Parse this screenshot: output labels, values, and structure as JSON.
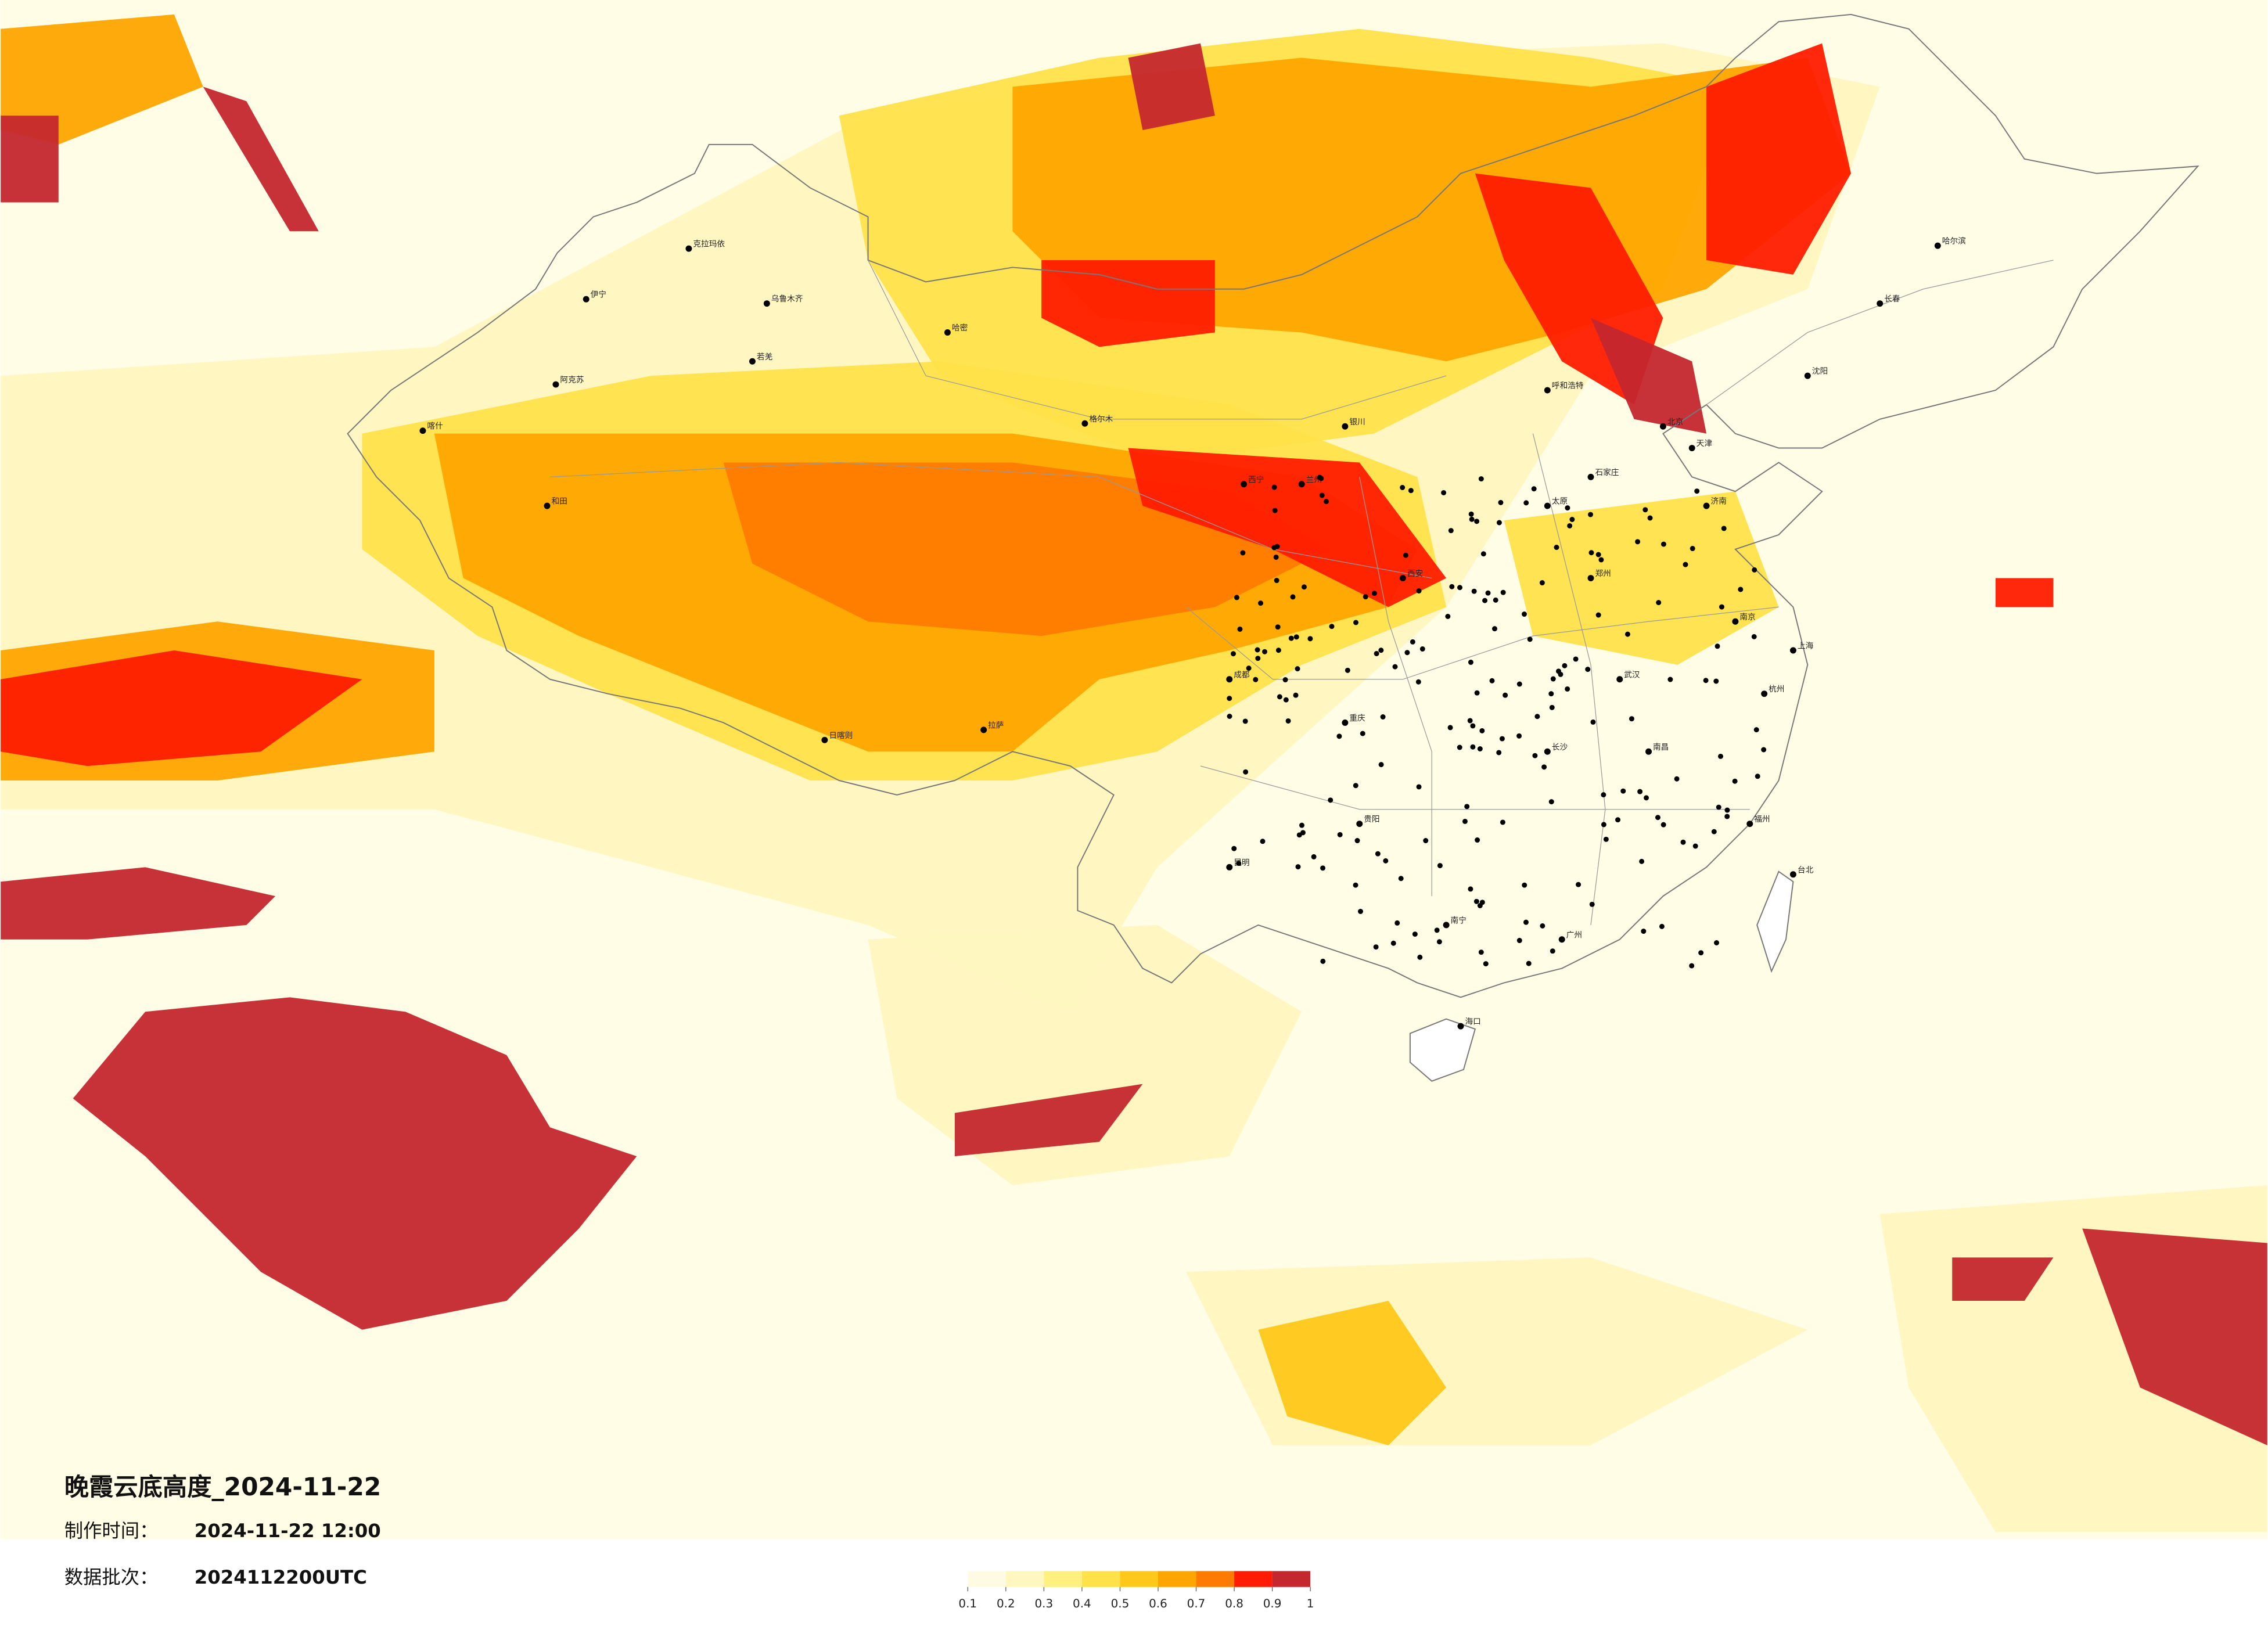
{
  "map": {
    "title": "晚霞云底高度_2024-11-22",
    "made_label": "制作时间：",
    "made_time": "2024-11-22 12:00",
    "batch_label": "数据批次：",
    "batch": "2024112200UTC",
    "cities": [
      "克拉玛依",
      "乌鲁木齐",
      "伊宁",
      "阿克苏",
      "喀什",
      "和田",
      "哈密",
      "若羌",
      "格尔木",
      "西宁",
      "兰州",
      "银川",
      "呼和浩特",
      "北京",
      "天津",
      "石家庄",
      "太原",
      "济南",
      "西安",
      "郑州",
      "武汉",
      "南京",
      "上海",
      "杭州",
      "成都",
      "重庆",
      "贵阳",
      "昆明",
      "南宁",
      "广州",
      "福州",
      "长沙",
      "南昌",
      "海口",
      "台北",
      "沈阳",
      "长春",
      "哈尔滨",
      "拉萨",
      "日喀则"
    ]
  },
  "legend": {
    "colors": [
      "#fffbe3",
      "#fff6c0",
      "#fff080",
      "#ffe24a",
      "#ffc81a",
      "#ffa500",
      "#ff7b00",
      "#ff1c00",
      "#c4272e"
    ],
    "ticks": [
      0.1,
      0.2,
      0.3,
      0.4,
      0.5,
      0.6,
      0.7,
      0.8,
      0.9,
      1
    ]
  }
}
